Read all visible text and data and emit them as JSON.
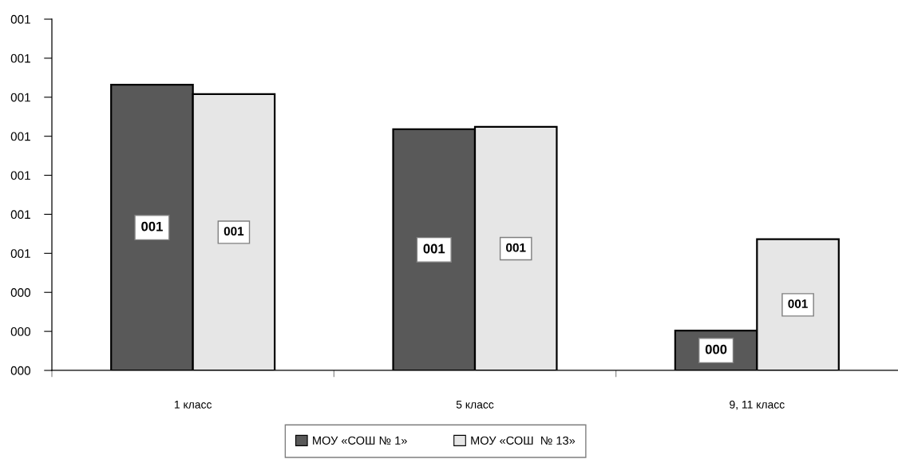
{
  "chart_data": {
    "type": "bar",
    "categories": [
      "1 класс",
      "5 класс",
      "9, 11 класс"
    ],
    "series": [
      {
        "name": "МОУ «СОШ № 1»",
        "color": "#595959",
        "values": [
          1.22,
          1.03,
          0.17
        ],
        "value_labels": [
          "001",
          "001",
          "000"
        ]
      },
      {
        "name": "МОУ «СОШ  № 13»",
        "color": "#e6e6e6",
        "values": [
          1.18,
          1.04,
          0.56
        ],
        "value_labels": [
          "001",
          "001",
          "001"
        ]
      }
    ],
    "ylim": [
      0,
      1.5
    ],
    "yticks": [
      {
        "value": 0,
        "label": "000"
      },
      {
        "value": 0.1667,
        "label": "000"
      },
      {
        "value": 0.3333,
        "label": "000"
      },
      {
        "value": 0.5,
        "label": "001"
      },
      {
        "value": 0.6667,
        "label": "001"
      },
      {
        "value": 0.8333,
        "label": "001"
      },
      {
        "value": 1,
        "label": "001"
      },
      {
        "value": 1.1667,
        "label": "001"
      },
      {
        "value": 1.3333,
        "label": "001"
      },
      {
        "value": 1.5,
        "label": "001"
      }
    ],
    "legend": "bottom"
  }
}
